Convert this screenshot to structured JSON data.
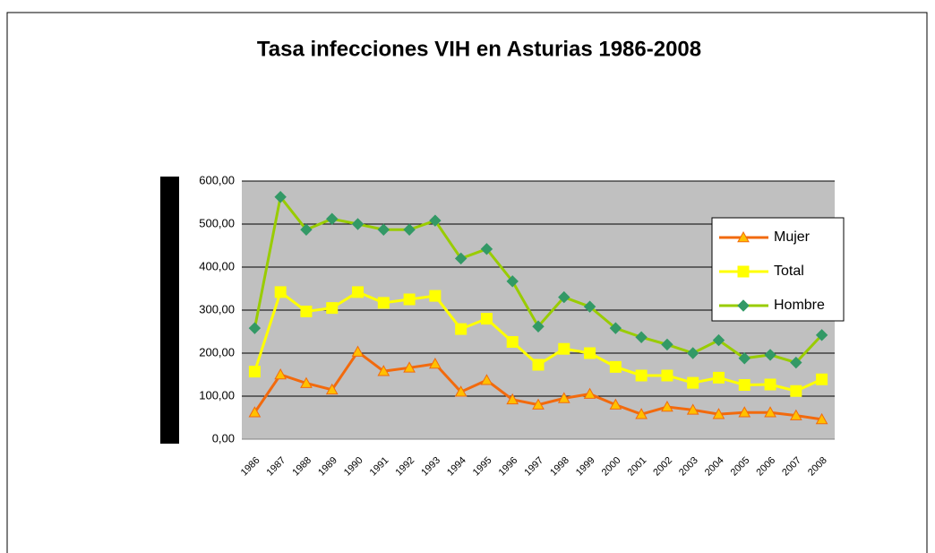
{
  "chart_data": {
    "type": "line",
    "title": "Tasa infecciones VIH en Asturias 1986-2008",
    "categories": [
      "1986",
      "1987",
      "1988",
      "1989",
      "1990",
      "1991",
      "1992",
      "1993",
      "1994",
      "1995",
      "1996",
      "1997",
      "1998",
      "1999",
      "2000",
      "2001",
      "2002",
      "2003",
      "2004",
      "2005",
      "2006",
      "2007",
      "2008"
    ],
    "series": [
      {
        "name": "Mujer",
        "color": "#f26a0d",
        "marker": "triangle",
        "marker_color": "#ffc000",
        "values": [
          62,
          150,
          130,
          115,
          203,
          158,
          166,
          175,
          110,
          137,
          92,
          80,
          95,
          105,
          80,
          58,
          75,
          68,
          58,
          62,
          62,
          55,
          46
        ]
      },
      {
        "name": "Total",
        "color": "#ffff00",
        "marker": "square",
        "marker_color": "#ffff00",
        "values": [
          157,
          342,
          297,
          305,
          342,
          317,
          325,
          333,
          256,
          280,
          226,
          173,
          210,
          200,
          168,
          148,
          148,
          131,
          143,
          126,
          127,
          112,
          139
        ]
      },
      {
        "name": "Hombre",
        "color": "#99cc00",
        "marker": "diamond",
        "marker_color": "#339966",
        "values": [
          258,
          563,
          487,
          512,
          500,
          487,
          487,
          508,
          420,
          442,
          367,
          262,
          330,
          308,
          258,
          237,
          220,
          200,
          230,
          188,
          196,
          178,
          242
        ]
      }
    ],
    "ylim": [
      0,
      600
    ],
    "yticks": [
      {
        "value": 0,
        "label": "0,00"
      },
      {
        "value": 100,
        "label": "100,00"
      },
      {
        "value": 200,
        "label": "200,00"
      },
      {
        "value": 300,
        "label": "300,00"
      },
      {
        "value": 400,
        "label": "400,00"
      },
      {
        "value": 500,
        "label": "500,00"
      },
      {
        "value": 600,
        "label": "600,00"
      }
    ],
    "grid": true,
    "legend": "right"
  }
}
